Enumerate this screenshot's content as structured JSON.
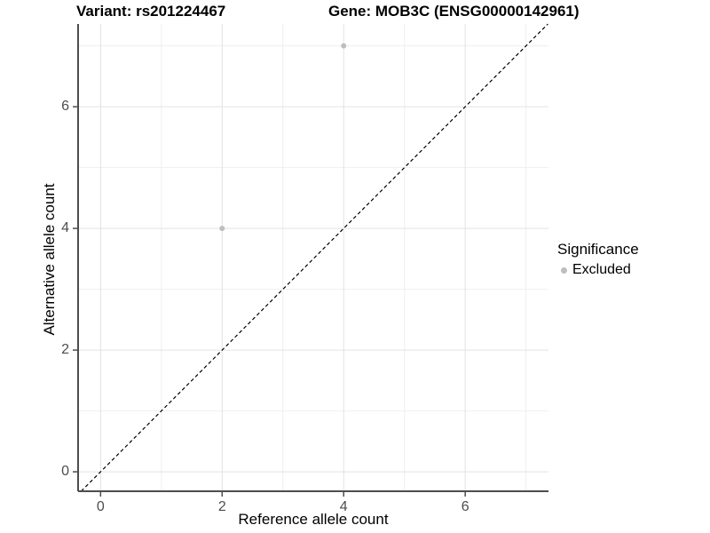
{
  "header": {
    "variant_title": "Variant: rs201224467",
    "gene_title": "Gene: MOB3C (ENSG00000142961)"
  },
  "chart_data": {
    "type": "scatter",
    "title": "Variant: rs201224467 / Gene: MOB3C (ENSG00000142961)",
    "xlabel": "Reference allele count",
    "ylabel": "Alternative allele count",
    "xlim": [
      -0.37,
      7.37
    ],
    "ylim": [
      -0.32,
      7.36
    ],
    "x_ticks": [
      0,
      2,
      4,
      6
    ],
    "y_ticks": [
      0,
      2,
      4,
      6
    ],
    "x_minor_ticks": [
      1,
      3,
      5,
      7
    ],
    "y_minor_ticks": [
      1,
      3,
      5,
      7
    ],
    "grid": "major and minor gridlines on white panel",
    "series": [
      {
        "name": "Excluded",
        "color": "#bebebe",
        "points": [
          {
            "x": 2,
            "y": 4
          },
          {
            "x": 4,
            "y": 7
          }
        ]
      }
    ],
    "identity_line": {
      "slope": 1,
      "intercept": 0,
      "style": "dashed",
      "color": "#000000"
    },
    "legend": {
      "title": "Significance",
      "position": "right",
      "items": [
        {
          "label": "Excluded",
          "color": "#bebebe"
        }
      ]
    }
  },
  "colors": {
    "background": "#ffffff",
    "axis_line": "#4d4d4d",
    "tick_mark": "#4d4d4d",
    "tick_label": "#4d4d4d",
    "grid_major": "#e2e2e2",
    "grid_minor": "#efefef",
    "point": "#bebebe",
    "identity_line": "#000000"
  }
}
